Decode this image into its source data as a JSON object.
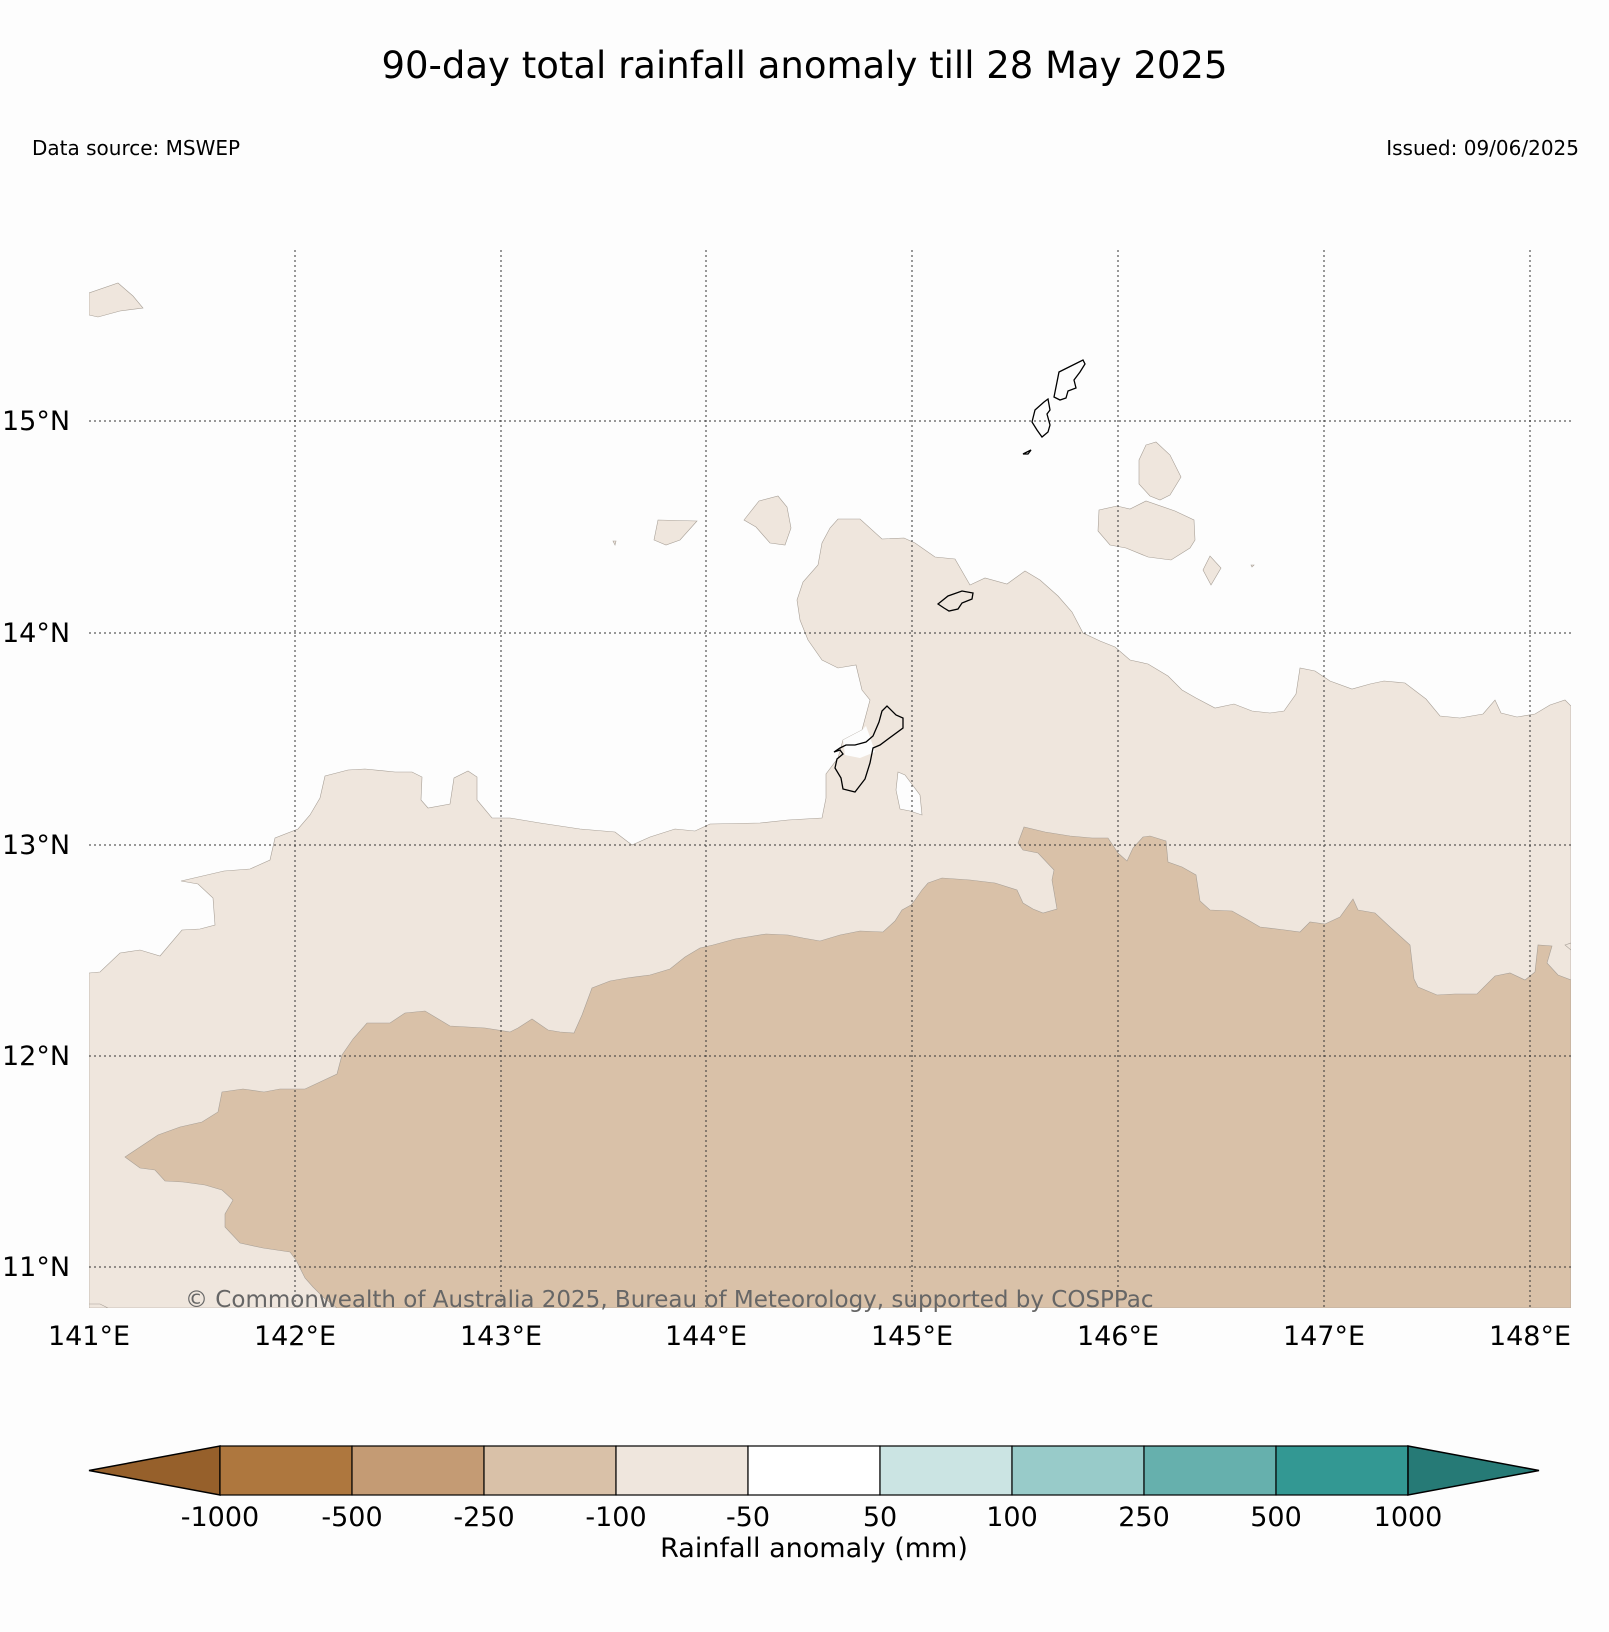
{
  "title": "90-day total rainfall anomaly till 28 May 2025",
  "data_source": "Data source: MSWEP",
  "issued": "Issued: 09/06/2025",
  "copyright": "© Commonwealth of Australia 2025, Bureau of Meteorology, supported by COSPPac",
  "lat_labels": [
    "15°N",
    "14°N",
    "13°N",
    "12°N",
    "11°N"
  ],
  "lon_labels": [
    "141°E",
    "142°E",
    "143°E",
    "144°E",
    "145°E",
    "146°E",
    "147°E",
    "148°E"
  ],
  "colorbar": {
    "label": "Rainfall anomaly (mm)",
    "ticks": [
      "-1000",
      "-500",
      "-250",
      "-100",
      "-50",
      "50",
      "100",
      "250",
      "500",
      "1000"
    ],
    "colors": [
      "#96602b",
      "#ae773e",
      "#c49b74",
      "#d9c1a8",
      "#efe6dd",
      "#ffffff",
      "#cbe4e3",
      "#98cbc9",
      "#66b0ad",
      "#339893",
      "#267a76"
    ]
  },
  "colors": {
    "light_band": "#efe6dd",
    "medium_band": "#d9c1a8"
  }
}
